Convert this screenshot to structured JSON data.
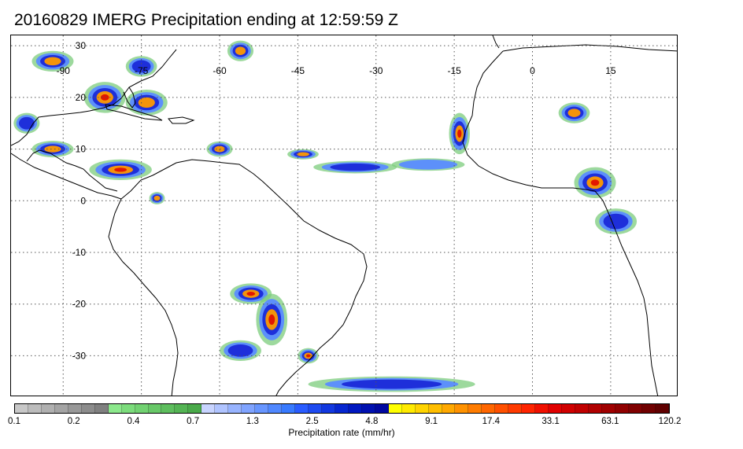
{
  "title": "20160829 IMERG Precipitation ending at 12:59:59 Z",
  "map": {
    "projection": "cylindrical equidistant",
    "lon_range": [
      -100,
      28
    ],
    "lat_range": [
      -38,
      32
    ],
    "grid": "dotted",
    "lon_labels": [
      {
        "lon": -90,
        "text": "-90"
      },
      {
        "lon": -75,
        "text": "-75"
      },
      {
        "lon": -60,
        "text": "-60"
      },
      {
        "lon": -45,
        "text": "-45"
      },
      {
        "lon": -30,
        "text": "-30"
      },
      {
        "lon": -15,
        "text": "-15"
      },
      {
        "lon": 0,
        "text": "0"
      },
      {
        "lon": 15,
        "text": "15"
      }
    ],
    "lat_labels": [
      {
        "lat": 30,
        "text": "30"
      },
      {
        "lat": 20,
        "text": "20"
      },
      {
        "lat": 10,
        "text": "10"
      },
      {
        "lat": 0,
        "text": "0"
      },
      {
        "lat": -10,
        "text": "-10"
      },
      {
        "lat": -20,
        "text": "-20"
      },
      {
        "lat": -30,
        "text": "-30"
      }
    ],
    "precip_areas": [
      {
        "name": "tropical-cyclone-atlantic",
        "lon": -56,
        "lat": 29,
        "rx": 2.5,
        "ry": 2,
        "peak": 3
      },
      {
        "name": "gulf-of-mexico",
        "lon": -92,
        "lat": 27,
        "rx": 4,
        "ry": 2,
        "peak": 3
      },
      {
        "name": "western-caribbean",
        "lon": -82,
        "lat": 20,
        "rx": 4,
        "ry": 3,
        "peak": 4
      },
      {
        "name": "cuba-hispaniola",
        "lon": -74,
        "lat": 19,
        "rx": 4,
        "ry": 2.5,
        "peak": 3
      },
      {
        "name": "bahamas",
        "lon": -75,
        "lat": 26,
        "rx": 3,
        "ry": 2,
        "peak": 2
      },
      {
        "name": "mexico-pacific",
        "lon": -97,
        "lat": 15,
        "rx": 2.5,
        "ry": 2,
        "peak": 2
      },
      {
        "name": "central-america-pacific",
        "lon": -92,
        "lat": 10,
        "rx": 4,
        "ry": 1.6,
        "peak": 3
      },
      {
        "name": "panama-colombia",
        "lon": -79,
        "lat": 6,
        "rx": 6,
        "ry": 2,
        "peak": 4
      },
      {
        "name": "venezuela-east",
        "lon": -60,
        "lat": 10,
        "rx": 2.5,
        "ry": 1.5,
        "peak": 3
      },
      {
        "name": "ecuador",
        "lon": -72,
        "lat": 0.5,
        "rx": 1.5,
        "ry": 1.2,
        "peak": 3
      },
      {
        "name": "itcz-west",
        "lon": -44,
        "lat": 9,
        "rx": 3,
        "ry": 1,
        "peak": 3
      },
      {
        "name": "itcz-central",
        "lon": -34,
        "lat": 6.5,
        "rx": 8,
        "ry": 1.2,
        "peak": 2
      },
      {
        "name": "itcz-east",
        "lon": -20,
        "lat": 7,
        "rx": 7,
        "ry": 1.2,
        "peak": 1
      },
      {
        "name": "west-africa-coast",
        "lon": -14,
        "lat": 13,
        "rx": 2,
        "ry": 4,
        "peak": 4
      },
      {
        "name": "sahel",
        "lon": 8,
        "lat": 17,
        "rx": 3,
        "ry": 2,
        "peak": 3
      },
      {
        "name": "nigeria-cameroon",
        "lon": 12,
        "lat": 3.5,
        "rx": 4,
        "ry": 3,
        "peak": 4
      },
      {
        "name": "gulf-of-guinea",
        "lon": 16,
        "lat": -4,
        "rx": 4,
        "ry": 2.5,
        "peak": 2
      },
      {
        "name": "paraguay",
        "lon": -54,
        "lat": -18,
        "rx": 4,
        "ry": 2,
        "peak": 4
      },
      {
        "name": "southern-brazil",
        "lon": -50,
        "lat": -23,
        "rx": 3,
        "ry": 5,
        "peak": 4
      },
      {
        "name": "argentina",
        "lon": -56,
        "lat": -29,
        "rx": 4,
        "ry": 2,
        "peak": 2
      },
      {
        "name": "uruguay",
        "lon": -43,
        "lat": -30,
        "rx": 2,
        "ry": 1.5,
        "peak": 4
      },
      {
        "name": "south-atlantic-front",
        "lon": -27,
        "lat": -35.5,
        "rx": 16,
        "ry": 1.5,
        "peak": 2
      }
    ]
  },
  "legend": {
    "colors": [
      "#c8c8c8",
      "#bcbcbc",
      "#b0b0b0",
      "#a4a4a4",
      "#989898",
      "#8c8c8c",
      "#808080",
      "#8ce88c",
      "#7cdc7c",
      "#72d272",
      "#68c868",
      "#5ebe5e",
      "#54b454",
      "#4aaa4a",
      "#c8d4ff",
      "#b0c4ff",
      "#98b4ff",
      "#80a4ff",
      "#6896ff",
      "#5088ff",
      "#387aff",
      "#2a5cff",
      "#1e4af0",
      "#1238e0",
      "#0626d0",
      "#0018c0",
      "#0010b0",
      "#0008a0",
      "#ffff00",
      "#ffea00",
      "#ffd400",
      "#ffbe00",
      "#ffa800",
      "#ff9200",
      "#ff7c00",
      "#ff6600",
      "#ff5000",
      "#ff3a00",
      "#ff2400",
      "#f01000",
      "#e00000",
      "#d00000",
      "#c00000",
      "#b00000",
      "#a00000",
      "#900000",
      "#800000",
      "#700000",
      "#600000"
    ],
    "ticks": [
      {
        "value": 0.1,
        "text": "0.1",
        "index": 0
      },
      {
        "value": 0.2,
        "text": "0.2",
        "index": 7
      },
      {
        "value": 0.4,
        "text": "0.4",
        "index": 14
      },
      {
        "value": 0.7,
        "text": "0.7",
        "index": 21
      },
      {
        "value": 1.3,
        "text": "1.3",
        "index": 28
      },
      {
        "value": 2.5,
        "text": "2.5",
        "index": 35
      },
      {
        "value": 4.8,
        "text": "4.8",
        "index": 42
      },
      {
        "value": 9.1,
        "text": "9.1",
        "index": 49
      },
      {
        "value": 17.4,
        "text": "17.4",
        "index": 56
      },
      {
        "value": 33.1,
        "text": "33.1",
        "index": 63
      },
      {
        "value": 63.1,
        "text": "63.1",
        "index": 70
      },
      {
        "value": 120.2,
        "text": "120.2",
        "index": 77
      }
    ],
    "units_label": "Precipitation rate (mm/hr)"
  }
}
